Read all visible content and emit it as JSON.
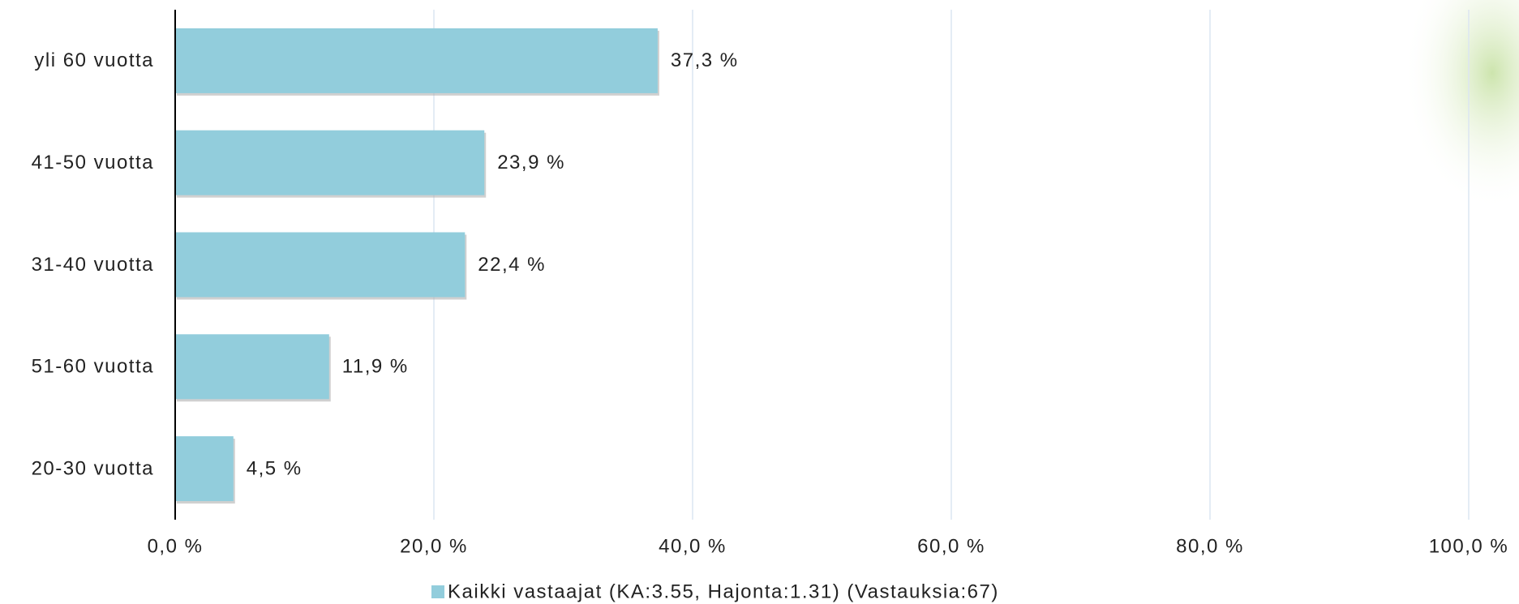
{
  "chart_data": {
    "type": "bar",
    "orientation": "horizontal",
    "categories": [
      "yli 60 vuotta",
      "41-50 vuotta",
      "31-40 vuotta",
      "51-60 vuotta",
      "20-30 vuotta"
    ],
    "series": [
      {
        "name": "Kaikki vastaajat (KA:3.55, Hajonta:1.31) (Vastauksia:67)",
        "color": "#92cddc",
        "values": [
          37.3,
          23.9,
          22.4,
          11.9,
          4.5
        ],
        "value_labels": [
          "37,3 %",
          "23,9 %",
          "22,4 %",
          "11,9 %",
          "4,5 %"
        ]
      }
    ],
    "xlim": [
      0,
      100
    ],
    "xticks": [
      {
        "value": 0,
        "label": "0,0 %"
      },
      {
        "value": 20,
        "label": "20,0 %"
      },
      {
        "value": 40,
        "label": "40,0 %"
      },
      {
        "value": 60,
        "label": "60,0 %"
      },
      {
        "value": 80,
        "label": "80,0 %"
      },
      {
        "value": 100,
        "label": "100,0 %"
      }
    ],
    "grid": true,
    "legend": "bottom"
  }
}
